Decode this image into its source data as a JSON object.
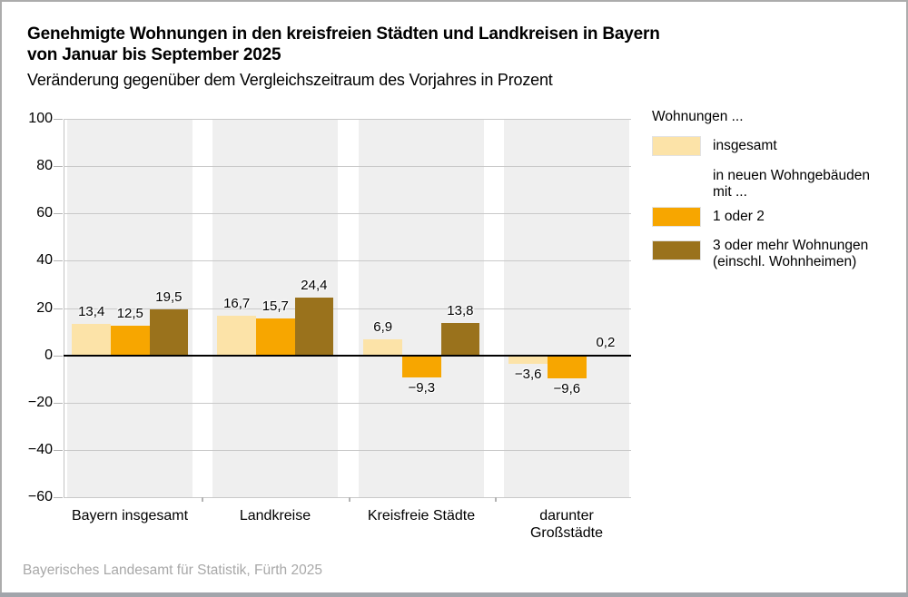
{
  "header": {
    "title_line1": "Genehmigte Wohnungen in den kreisfreien Städten und Landkreisen in Bayern",
    "title_line2": "von Januar bis September 2025",
    "subtitle": "Veränderung gegenüber dem Vergleichszeitraum des Vorjahres in Prozent"
  },
  "legend": {
    "title": "Wohnungen ...",
    "items": [
      {
        "label": "insgesamt",
        "color": "#FCE3A8",
        "swatch": true
      },
      {
        "label": "in neuen Wohngebäuden mit ...",
        "swatch": false
      },
      {
        "label": "1 oder 2",
        "color": "#F7A600",
        "swatch": true
      },
      {
        "label": "3 oder mehr Wohnungen (einschl. Wohnheimen)",
        "color": "#9A721C",
        "swatch": true
      }
    ]
  },
  "chart_data": {
    "type": "bar",
    "title": "Genehmigte Wohnungen in den kreisfreien Städten und Landkreisen in Bayern von Januar bis September 2025",
    "ylabel": "Veränderung gegenüber dem Vergleichszeitraum des Vorjahres in Prozent",
    "categories": [
      "Bayern insgesamt",
      "Landkreise",
      "Kreisfreie Städte",
      "darunter\nGroßstädte"
    ],
    "series": [
      {
        "name": "insgesamt",
        "color": "#FCE3A8",
        "values": [
          13.4,
          16.7,
          6.9,
          -3.6
        ],
        "labels": [
          "13,4",
          "16,7",
          "6,9",
          "−3,6"
        ]
      },
      {
        "name": "1 oder 2",
        "color": "#F7A600",
        "values": [
          12.5,
          15.7,
          -9.3,
          -9.6
        ],
        "labels": [
          "12,5",
          "15,7",
          "−9,3",
          "−9,6"
        ]
      },
      {
        "name": "3 oder mehr Wohnungen (einschl. Wohnheimen)",
        "color": "#9A721C",
        "values": [
          19.5,
          24.4,
          13.8,
          0.2
        ],
        "labels": [
          "19,5",
          "24,4",
          "13,8",
          "0,2"
        ]
      }
    ],
    "ylim": [
      -60,
      100
    ],
    "ytick_step": 20,
    "yticks": [
      100,
      80,
      60,
      40,
      20,
      0,
      -20,
      -40,
      -60
    ],
    "ytick_labels": [
      "100",
      "80",
      "60",
      "40",
      "20",
      "0",
      "−20",
      "−40",
      "−60"
    ],
    "grid": true,
    "legend_position": "right",
    "band_color": "#EFEFEF",
    "zero_line_color": "#000000"
  },
  "footer": {
    "source": "Bayerisches Landesamt für Statistik, Fürth 2025"
  }
}
